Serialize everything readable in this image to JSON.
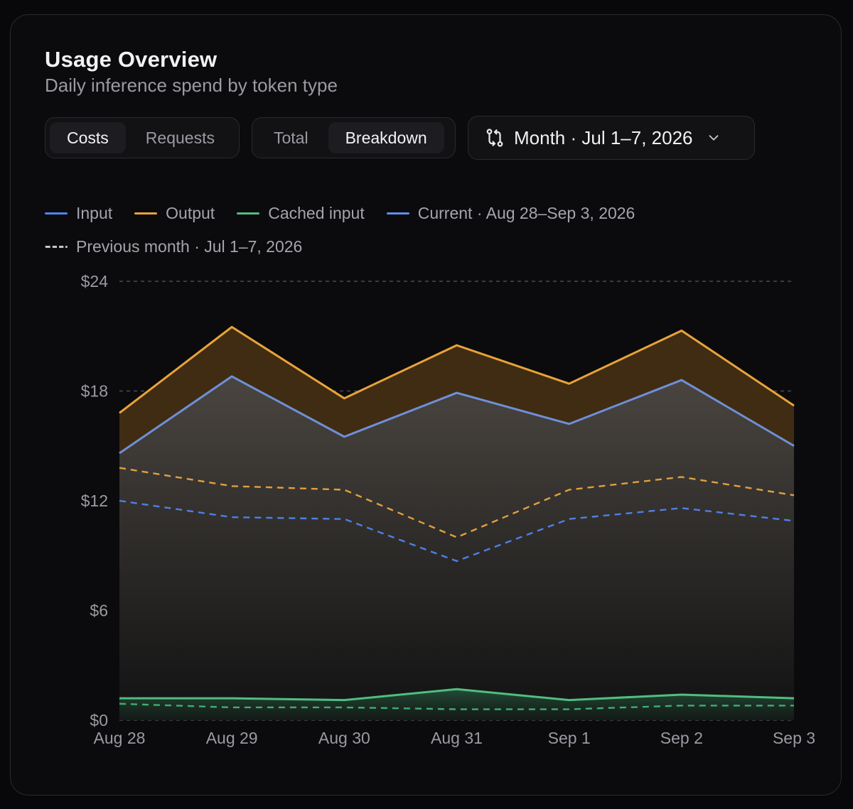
{
  "header": {
    "title": "Usage Overview",
    "subtitle": "Daily inference spend by token type"
  },
  "metric_toggle": {
    "options": [
      "Costs",
      "Requests"
    ],
    "selected": "Costs"
  },
  "view_toggle": {
    "options": [
      "Total",
      "Breakdown"
    ],
    "selected": "Breakdown"
  },
  "compare_selector": {
    "label": "Month · Jul 1–7, 2026",
    "icon": "compare-arrows-icon",
    "chevron": "chevron-down-icon"
  },
  "legend": {
    "input": "Input",
    "output": "Output",
    "cached": "Cached input",
    "current": "Current · Aug 28–Sep 3, 2026",
    "previous": "Previous month · Jul 1–7, 2026"
  },
  "colors": {
    "input": "#6f8fd8",
    "input_legend": "#4f86f0",
    "input_prev": "#4f7fe6",
    "output": "#e8a33a",
    "output_prev": "#e0a040",
    "cached": "#4fbf80",
    "cached_prev": "#3fae70",
    "current": "#5b8ff0",
    "previous": "#c6c6cc"
  },
  "chart_data": {
    "type": "area",
    "stacked": true,
    "categories": [
      "Aug 28",
      "Aug 29",
      "Aug 30",
      "Aug 31",
      "Sep 1",
      "Sep 2",
      "Sep 3"
    ],
    "y_ticks": [
      "$0",
      "$6",
      "$12",
      "$18",
      "$24"
    ],
    "y_tick_values": [
      0,
      6,
      12,
      18,
      24
    ],
    "ylim": [
      0,
      24
    ],
    "grid": true,
    "current": {
      "cached_input": [
        1.2,
        1.2,
        1.1,
        1.7,
        1.1,
        1.4,
        1.2
      ],
      "input_cumulative": [
        14.6,
        18.8,
        15.5,
        17.9,
        16.2,
        18.6,
        15.0
      ],
      "output_cumulative": [
        16.8,
        21.5,
        17.6,
        20.5,
        18.4,
        21.3,
        17.2
      ]
    },
    "previous_month": {
      "cached_input": [
        0.9,
        0.7,
        0.7,
        0.6,
        0.6,
        0.8,
        0.8
      ],
      "input_cumulative": [
        12.0,
        11.1,
        11.0,
        8.7,
        11.0,
        11.6,
        10.9
      ],
      "output_cumulative": [
        13.8,
        12.8,
        12.6,
        10.0,
        12.6,
        13.3,
        12.3
      ]
    }
  }
}
